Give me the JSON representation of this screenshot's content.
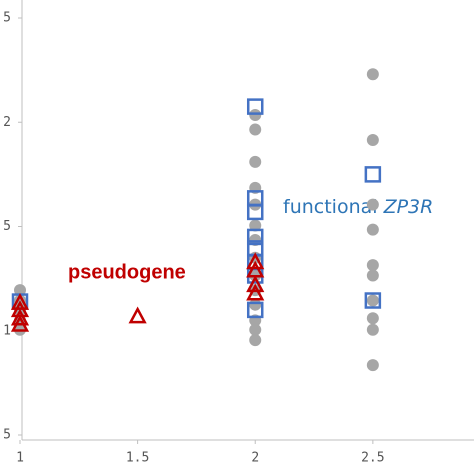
{
  "chart_data": {
    "type": "scatter",
    "xlim": [
      1,
      2.93
    ],
    "xticks": [
      1,
      1.5,
      2,
      2.5
    ],
    "ylim": [
      0,
      4
    ],
    "yticks": [
      {
        "value": 4,
        "label": "5"
      },
      {
        "value": 3,
        "label": "2"
      },
      {
        "value": 2,
        "label": "5"
      },
      {
        "value": 1,
        "label": "1"
      },
      {
        "value": 0,
        "label": "5"
      }
    ],
    "series": [
      {
        "color": "#a6a6a6",
        "marker": "circle",
        "x": [
          1,
          1,
          1,
          1,
          1,
          2,
          2,
          2,
          2,
          2,
          2,
          2,
          2,
          2,
          2,
          2,
          2,
          2,
          2,
          2.5,
          2.5,
          2.5,
          2.5,
          2.5,
          2.5,
          2.5,
          2.5,
          2.5,
          2.5
        ],
        "values": [
          1.39,
          1.29,
          1.2,
          1.1,
          1.01,
          3.07,
          2.93,
          2.62,
          2.37,
          2.21,
          2.01,
          1.87,
          1.7,
          1.53,
          1.39,
          1.25,
          1.1,
          1.01,
          0.91,
          3.46,
          2.83,
          2.21,
          1.97,
          1.63,
          1.53,
          1.29,
          1.12,
          1.01,
          0.67
        ]
      },
      {
        "color": "#4472c4",
        "marker": "square",
        "x": [
          1,
          2,
          2,
          2,
          2,
          2,
          2,
          2,
          2,
          2.5,
          2.5
        ],
        "values": [
          1.28,
          3.15,
          2.27,
          2.14,
          1.9,
          1.79,
          1.66,
          1.53,
          1.2,
          2.5,
          1.29
        ]
      },
      {
        "color": "#c00000",
        "marker": "triangle",
        "x": [
          1,
          1,
          1,
          1,
          1.5,
          2,
          2,
          2,
          2
        ],
        "values": [
          1.27,
          1.2,
          1.12,
          1.06,
          1.14,
          1.66,
          1.58,
          1.44,
          1.36
        ]
      }
    ],
    "annotations": [
      {
        "text": "pseudogene",
        "color": "#c00000"
      },
      {
        "text": "functional ",
        "italic": "ZP3R",
        "color": "#2e75b6"
      }
    ]
  }
}
